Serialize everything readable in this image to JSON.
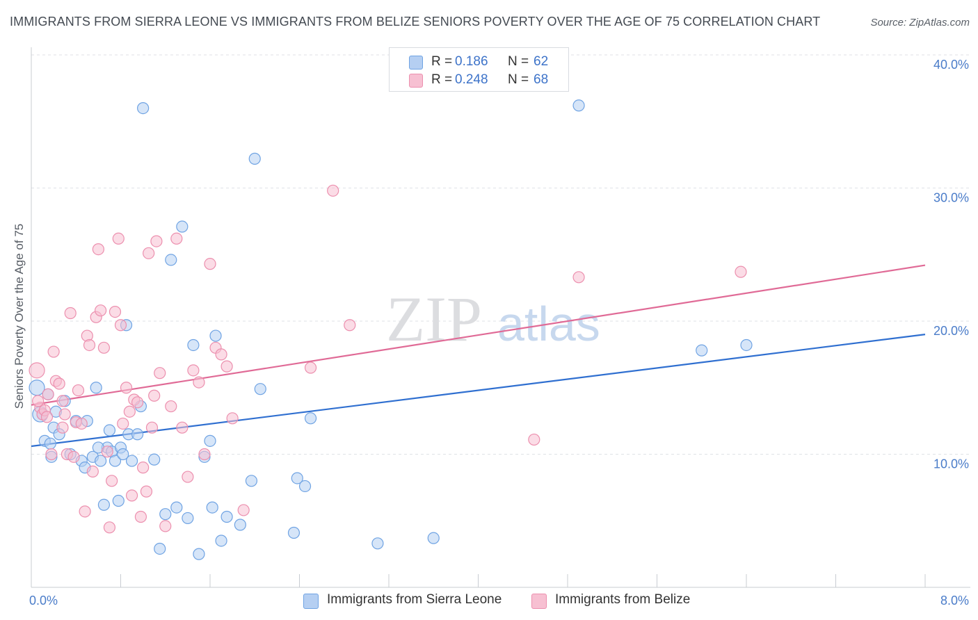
{
  "chart_data": {
    "type": "scatter",
    "title": "IMMIGRANTS FROM SIERRA LEONE VS IMMIGRANTS FROM BELIZE SENIORS POVERTY OVER THE AGE OF 75 CORRELATION CHART",
    "source": "Source: ZipAtlas.com",
    "watermark": "ZIPatlas",
    "xlabel": "",
    "ylabel": "Seniors Poverty Over the Age of 75",
    "xlim": [
      0,
      8
    ],
    "ylim": [
      0,
      42
    ],
    "x_tick_labels": [
      {
        "value": 0,
        "label": "0.0%"
      },
      {
        "value": 8,
        "label": "8.0%"
      }
    ],
    "x_minor_ticks": [
      0.8,
      1.6,
      2.4,
      3.2,
      4.0,
      4.8,
      5.6,
      6.4,
      7.2,
      8.0
    ],
    "y_tick_labels": [
      {
        "value": 10,
        "label": "10.0%"
      },
      {
        "value": 20,
        "label": "20.0%"
      },
      {
        "value": 30,
        "label": "30.0%"
      },
      {
        "value": 40,
        "label": "40.0%"
      }
    ],
    "grid": true,
    "legend": {
      "position": "top-center",
      "rows": [
        {
          "r_label": "R =",
          "r_value": "0.186",
          "n_label": "N =",
          "n_value": "62"
        },
        {
          "r_label": "R =",
          "r_value": "0.248",
          "n_label": "N =",
          "n_value": "68"
        }
      ]
    },
    "series": [
      {
        "name": "Immigrants from Sierra Leone",
        "color": "#6fa3e3",
        "fill": "#b5cff2",
        "line_color": "#2f6fd0",
        "trend": {
          "x": [
            0,
            8
          ],
          "y": [
            10.6,
            19.0
          ]
        },
        "points": [
          [
            0.05,
            15.0
          ],
          [
            0.08,
            13.0
          ],
          [
            0.12,
            11.0
          ],
          [
            0.15,
            14.5
          ],
          [
            0.17,
            10.8
          ],
          [
            0.2,
            12.0
          ],
          [
            0.25,
            11.5
          ],
          [
            0.3,
            14.0
          ],
          [
            0.35,
            10.0
          ],
          [
            0.4,
            12.5
          ],
          [
            0.45,
            9.5
          ],
          [
            0.48,
            9.0
          ],
          [
            0.5,
            12.5
          ],
          [
            0.55,
            9.8
          ],
          [
            0.58,
            15.0
          ],
          [
            0.62,
            9.5
          ],
          [
            0.65,
            6.2
          ],
          [
            0.68,
            10.5
          ],
          [
            0.7,
            11.8
          ],
          [
            0.72,
            10.2
          ],
          [
            0.75,
            9.5
          ],
          [
            0.78,
            6.5
          ],
          [
            0.8,
            10.5
          ],
          [
            0.82,
            10.0
          ],
          [
            0.85,
            19.7
          ],
          [
            0.87,
            11.5
          ],
          [
            0.9,
            9.5
          ],
          [
            0.95,
            11.5
          ],
          [
            0.98,
            13.6
          ],
          [
            1.0,
            36.0
          ],
          [
            1.1,
            9.6
          ],
          [
            1.15,
            2.9
          ],
          [
            1.2,
            5.5
          ],
          [
            1.25,
            24.6
          ],
          [
            1.3,
            6.0
          ],
          [
            1.35,
            27.1
          ],
          [
            1.4,
            5.2
          ],
          [
            1.45,
            18.2
          ],
          [
            1.5,
            2.5
          ],
          [
            1.55,
            9.8
          ],
          [
            1.6,
            11.0
          ],
          [
            1.62,
            6.0
          ],
          [
            1.65,
            18.9
          ],
          [
            1.7,
            3.5
          ],
          [
            1.75,
            5.3
          ],
          [
            1.87,
            4.7
          ],
          [
            1.97,
            8.0
          ],
          [
            2.0,
            32.2
          ],
          [
            2.05,
            14.9
          ],
          [
            2.35,
            4.1
          ],
          [
            2.38,
            8.2
          ],
          [
            2.45,
            7.6
          ],
          [
            2.5,
            12.7
          ],
          [
            3.1,
            3.3
          ],
          [
            3.6,
            3.7
          ],
          [
            4.9,
            36.2
          ],
          [
            6.0,
            17.8
          ],
          [
            6.4,
            18.2
          ],
          [
            0.1,
            13.0
          ],
          [
            0.22,
            13.2
          ],
          [
            0.6,
            10.5
          ],
          [
            0.18,
            9.8
          ]
        ]
      },
      {
        "name": "Immigrants from Belize",
        "color": "#ec8fae",
        "fill": "#f7c0d2",
        "line_color": "#e06a96",
        "trend": {
          "x": [
            0,
            8
          ],
          "y": [
            13.7,
            24.2
          ]
        },
        "points": [
          [
            0.05,
            16.3
          ],
          [
            0.08,
            13.5
          ],
          [
            0.1,
            13.0
          ],
          [
            0.12,
            13.3
          ],
          [
            0.15,
            14.5
          ],
          [
            0.2,
            17.7
          ],
          [
            0.22,
            15.5
          ],
          [
            0.25,
            15.3
          ],
          [
            0.28,
            14.0
          ],
          [
            0.3,
            13.0
          ],
          [
            0.32,
            10.0
          ],
          [
            0.35,
            20.6
          ],
          [
            0.38,
            9.8
          ],
          [
            0.4,
            12.4
          ],
          [
            0.42,
            14.8
          ],
          [
            0.45,
            12.3
          ],
          [
            0.48,
            5.7
          ],
          [
            0.5,
            18.9
          ],
          [
            0.52,
            18.2
          ],
          [
            0.55,
            8.7
          ],
          [
            0.58,
            20.3
          ],
          [
            0.6,
            25.4
          ],
          [
            0.62,
            20.8
          ],
          [
            0.65,
            18.0
          ],
          [
            0.68,
            10.2
          ],
          [
            0.7,
            4.5
          ],
          [
            0.72,
            8.0
          ],
          [
            0.75,
            20.7
          ],
          [
            0.78,
            26.2
          ],
          [
            0.8,
            19.7
          ],
          [
            0.82,
            12.3
          ],
          [
            0.85,
            15.0
          ],
          [
            0.88,
            13.2
          ],
          [
            0.9,
            6.9
          ],
          [
            0.92,
            14.1
          ],
          [
            0.95,
            13.9
          ],
          [
            0.98,
            5.3
          ],
          [
            1.0,
            9.0
          ],
          [
            1.03,
            7.2
          ],
          [
            1.05,
            25.1
          ],
          [
            1.08,
            12.0
          ],
          [
            1.1,
            14.4
          ],
          [
            1.12,
            26.0
          ],
          [
            1.15,
            16.1
          ],
          [
            1.2,
            4.6
          ],
          [
            1.25,
            13.6
          ],
          [
            1.3,
            26.2
          ],
          [
            1.35,
            12.0
          ],
          [
            1.4,
            8.3
          ],
          [
            1.45,
            16.3
          ],
          [
            1.5,
            15.4
          ],
          [
            1.55,
            10.0
          ],
          [
            1.6,
            24.3
          ],
          [
            1.65,
            18.0
          ],
          [
            1.7,
            17.5
          ],
          [
            1.75,
            16.6
          ],
          [
            1.8,
            12.7
          ],
          [
            1.9,
            5.8
          ],
          [
            2.5,
            16.5
          ],
          [
            2.7,
            29.8
          ],
          [
            2.85,
            19.7
          ],
          [
            4.5,
            11.1
          ],
          [
            4.9,
            23.3
          ],
          [
            6.35,
            23.7
          ],
          [
            0.18,
            10.0
          ],
          [
            0.28,
            12.0
          ],
          [
            0.06,
            14.0
          ],
          [
            0.14,
            12.8
          ]
        ]
      }
    ]
  }
}
